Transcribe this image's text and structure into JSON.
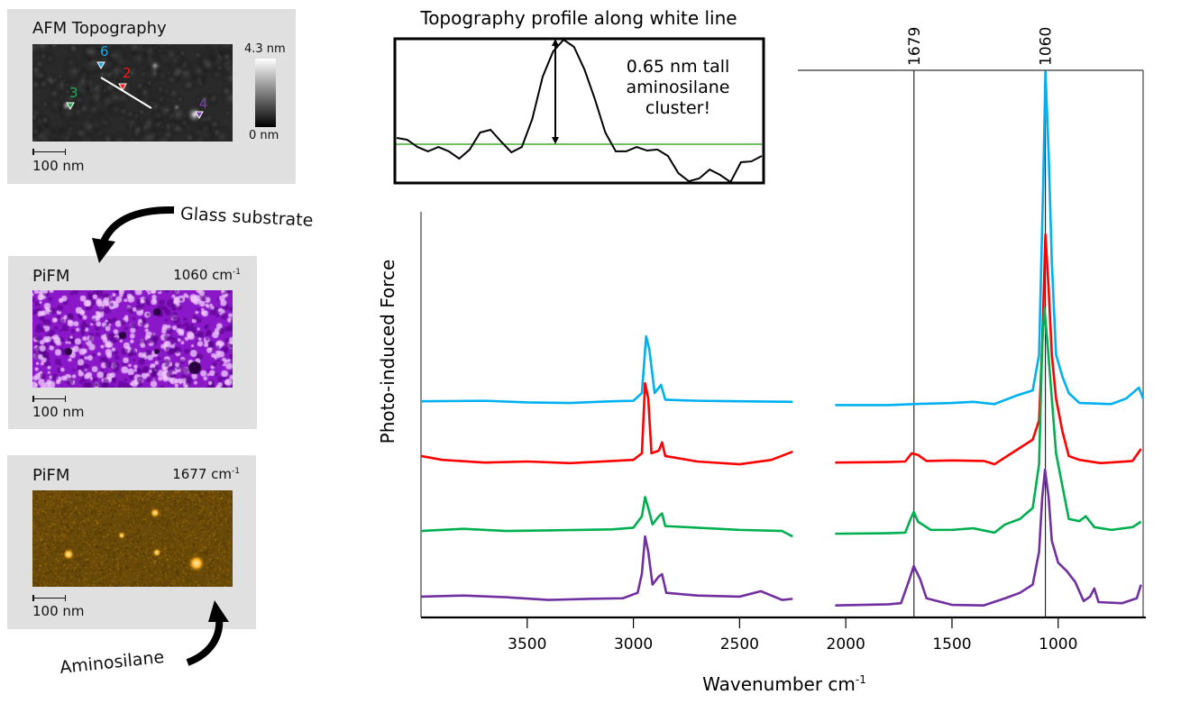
{
  "afm_panel": {
    "title": "AFM Topography",
    "colorbar_max": "4.3 nm",
    "colorbar_min": "0 nm",
    "scale_bar": "100 nm",
    "markers": [
      {
        "label": "6",
        "color": "#1ea7e8"
      },
      {
        "label": "2",
        "color": "#ff1a1a"
      },
      {
        "label": "3",
        "color": "#22aa55"
      },
      {
        "label": "4",
        "color": "#7b3fb0"
      }
    ]
  },
  "pifm_1060_panel": {
    "title": "PiFM",
    "wavenumber": "1060 cm",
    "unit_exp": "-1",
    "scale_bar": "100 nm",
    "colormap": "#a020f0"
  },
  "pifm_1677_panel": {
    "title": "PiFM",
    "wavenumber": "1677 cm",
    "unit_exp": "-1",
    "scale_bar": "100 nm",
    "colormap": "#c08a10"
  },
  "annotations": {
    "glass_substrate": "Glass substrate",
    "aminosilane": "Aminosilane",
    "cluster_note": [
      "0.65 nm tall",
      "aminosilane",
      "cluster!"
    ]
  },
  "chart_data": [
    {
      "type": "line",
      "title": "Topography profile along white line",
      "ylabel": "",
      "xlabel": "",
      "y_unit": "nm",
      "annotation": "0.65 nm tall aminosilane cluster!",
      "reference_lines_nm": [
        0,
        0.65
      ],
      "line_color": "#000000",
      "reference_color": "#1a9a00",
      "values": [
        0.039,
        0.028,
        -0.017,
        -0.044,
        -0.017,
        -0.044,
        -0.089,
        -0.033,
        0.072,
        0.089,
        0.017,
        -0.05,
        -0.017,
        0.156,
        0.417,
        0.572,
        0.644,
        0.6,
        0.461,
        0.278,
        0.072,
        -0.044,
        -0.044,
        -0.017,
        -0.039,
        -0.033,
        -0.072,
        -0.178,
        -0.228,
        -0.211,
        -0.156,
        -0.189,
        -0.233,
        -0.111,
        -0.106,
        -0.072
      ]
    },
    {
      "type": "line",
      "xlabel": "Wavenumber cm",
      "xlabel_exp": "-1",
      "ylabel": "Photo-induced Force",
      "xlim": [
        4000,
        600
      ],
      "x_reversed": true,
      "xticks": [
        3500,
        3000,
        2500,
        2000,
        1500,
        1000
      ],
      "ylim": [
        0,
        100
      ],
      "y_unit": "arbitrary (stacked offsets)",
      "grid": false,
      "marker_lines": [
        {
          "x": 1679,
          "label": "1679"
        },
        {
          "x": 1060,
          "label": "1060"
        }
      ],
      "series": [
        {
          "marker": "6",
          "color": "#00b0f0",
          "segments": [
            [
              [
                4000,
                39.5
              ],
              [
                3700,
                39.6
              ],
              [
                3500,
                39.3
              ],
              [
                3300,
                39.2
              ],
              [
                3100,
                39.5
              ],
              [
                3000,
                39.6
              ],
              [
                2960,
                41
              ],
              [
                2940,
                51.4
              ],
              [
                2925,
                49
              ],
              [
                2900,
                41
              ],
              [
                2870,
                42.5
              ],
              [
                2850,
                39.8
              ],
              [
                2700,
                39.6
              ],
              [
                2500,
                39.5
              ],
              [
                2250,
                39.4
              ]
            ],
            [
              [
                2050,
                38.8
              ],
              [
                1800,
                38.8
              ],
              [
                1679,
                39
              ],
              [
                1500,
                39.2
              ],
              [
                1400,
                39.4
              ],
              [
                1300,
                39
              ],
              [
                1200,
                40.5
              ],
              [
                1120,
                41.5
              ],
              [
                1090,
                48
              ],
              [
                1070,
                80
              ],
              [
                1060,
                99.7
              ],
              [
                1045,
                85
              ],
              [
                1030,
                65
              ],
              [
                1010,
                48
              ],
              [
                980,
                44
              ],
              [
                950,
                41
              ],
              [
                900,
                39.2
              ],
              [
                750,
                39
              ],
              [
                680,
                40
              ],
              [
                620,
                42
              ],
              [
                600,
                40
              ]
            ]
          ]
        },
        {
          "marker": "2",
          "color": "#ff0000",
          "segments": [
            [
              [
                4000,
                29.5
              ],
              [
                3900,
                28.8
              ],
              [
                3700,
                28.3
              ],
              [
                3500,
                28.5
              ],
              [
                3300,
                28.2
              ],
              [
                3100,
                28.6
              ],
              [
                3000,
                28.8
              ],
              [
                2960,
                30
              ],
              [
                2945,
                42.8
              ],
              [
                2930,
                40
              ],
              [
                2915,
                30
              ],
              [
                2880,
                30.5
              ],
              [
                2865,
                32
              ],
              [
                2850,
                29.5
              ],
              [
                2700,
                28.5
              ],
              [
                2500,
                28
              ],
              [
                2350,
                28.8
              ],
              [
                2250,
                30.3
              ]
            ],
            [
              [
                2050,
                28.3
              ],
              [
                1800,
                28.4
              ],
              [
                1720,
                28.5
              ],
              [
                1690,
                30
              ],
              [
                1660,
                29.7
              ],
              [
                1620,
                28.6
              ],
              [
                1500,
                28.7
              ],
              [
                1350,
                28.6
              ],
              [
                1300,
                28
              ],
              [
                1200,
                30.5
              ],
              [
                1120,
                32.5
              ],
              [
                1090,
                36
              ],
              [
                1075,
                50
              ],
              [
                1060,
                70
              ],
              [
                1045,
                60
              ],
              [
                1030,
                48
              ],
              [
                1010,
                40
              ],
              [
                980,
                34
              ],
              [
                950,
                29.5
              ],
              [
                900,
                28.8
              ],
              [
                800,
                28.2
              ],
              [
                650,
                28.6
              ],
              [
                610,
                30.8
              ]
            ]
          ]
        },
        {
          "marker": "3",
          "color": "#00b050",
          "segments": [
            [
              [
                4000,
                15.8
              ],
              [
                3800,
                16.2
              ],
              [
                3600,
                15.8
              ],
              [
                3400,
                15.9
              ],
              [
                3100,
                16.1
              ],
              [
                3000,
                16.4
              ],
              [
                2960,
                18.5
              ],
              [
                2945,
                22
              ],
              [
                2930,
                20
              ],
              [
                2910,
                17
              ],
              [
                2880,
                18.5
              ],
              [
                2865,
                19
              ],
              [
                2850,
                16.7
              ],
              [
                2700,
                16.4
              ],
              [
                2500,
                16
              ],
              [
                2300,
                15.8
              ],
              [
                2250,
                14.8
              ]
            ],
            [
              [
                2050,
                15.3
              ],
              [
                1800,
                15.4
              ],
              [
                1720,
                15.5
              ],
              [
                1695,
                18
              ],
              [
                1680,
                19.3
              ],
              [
                1660,
                17.5
              ],
              [
                1600,
                16
              ],
              [
                1500,
                16
              ],
              [
                1400,
                16.3
              ],
              [
                1300,
                15.5
              ],
              [
                1250,
                17
              ],
              [
                1180,
                18
              ],
              [
                1120,
                20
              ],
              [
                1090,
                28
              ],
              [
                1075,
                50
              ],
              [
                1065,
                56.5
              ],
              [
                1050,
                50
              ],
              [
                1030,
                40
              ],
              [
                1010,
                30
              ],
              [
                980,
                24
              ],
              [
                950,
                18
              ],
              [
                900,
                17.6
              ],
              [
                870,
                18.5
              ],
              [
                830,
                16.5
              ],
              [
                750,
                16
              ],
              [
                650,
                16.5
              ],
              [
                610,
                17.5
              ]
            ]
          ]
        },
        {
          "marker": "4",
          "color": "#7030a0",
          "segments": [
            [
              [
                4000,
                3.8
              ],
              [
                3800,
                4
              ],
              [
                3600,
                3.7
              ],
              [
                3400,
                3.2
              ],
              [
                3200,
                3.4
              ],
              [
                3050,
                3.5
              ],
              [
                2980,
                4.5
              ],
              [
                2960,
                8
              ],
              [
                2945,
                14.8
              ],
              [
                2930,
                12
              ],
              [
                2910,
                6
              ],
              [
                2880,
                7.5
              ],
              [
                2865,
                7.9
              ],
              [
                2845,
                4.5
              ],
              [
                2700,
                4
              ],
              [
                2500,
                3.8
              ],
              [
                2400,
                4.8
              ],
              [
                2300,
                3.2
              ],
              [
                2250,
                3.4
              ]
            ],
            [
              [
                2050,
                2.2
              ],
              [
                1800,
                2.4
              ],
              [
                1740,
                2.6
              ],
              [
                1700,
                7
              ],
              [
                1680,
                9.4
              ],
              [
                1650,
                7
              ],
              [
                1620,
                3.5
              ],
              [
                1500,
                2.3
              ],
              [
                1350,
                2.2
              ],
              [
                1250,
                3.5
              ],
              [
                1180,
                4.5
              ],
              [
                1120,
                6
              ],
              [
                1090,
                12
              ],
              [
                1075,
                22
              ],
              [
                1062,
                27
              ],
              [
                1045,
                22
              ],
              [
                1030,
                14
              ],
              [
                1000,
                10
              ],
              [
                960,
                8.5
              ],
              [
                920,
                6.5
              ],
              [
                880,
                3
              ],
              [
                850,
                3.8
              ],
              [
                830,
                5.3
              ],
              [
                810,
                2.8
              ],
              [
                700,
                2.6
              ],
              [
                630,
                3.5
              ],
              [
                610,
                6
              ]
            ]
          ]
        }
      ]
    }
  ]
}
